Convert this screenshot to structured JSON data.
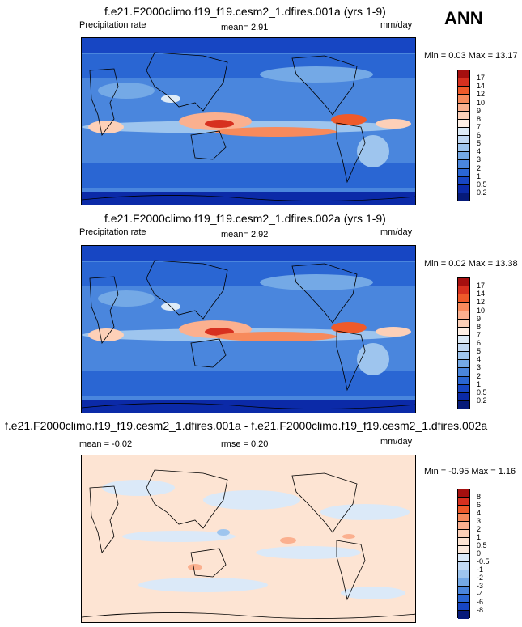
{
  "season": "ANN",
  "panels": [
    {
      "title": "f.e21.F2000climo.f19_f19.cesm2_1.dfires.001a (yrs 1-9)",
      "variable": "Precipitation rate",
      "stat_text": "mean=   2.91",
      "units": "mm/day",
      "minmax": "Min =   0.03 Max =  13.17",
      "kind": "precip",
      "legend_labels": [
        "17",
        "14",
        "12",
        "10",
        "9",
        "8",
        "7",
        "6",
        "5",
        "4",
        "3",
        "2",
        "1",
        "0.5",
        "0.2"
      ],
      "legend_colors": [
        "#a50f0f",
        "#d7301f",
        "#ef5a2a",
        "#f78a5c",
        "#fbb08f",
        "#fdd0b8",
        "#fff0e6",
        "#deebf7",
        "#c2d9f3",
        "#9ec5ee",
        "#74a9e6",
        "#4a86dd",
        "#2a66d3",
        "#1746c3",
        "#0b2aa8",
        "#061a7a"
      ]
    },
    {
      "title": "f.e21.F2000climo.f19_f19.cesm2_1.dfires.002a (yrs 1-9)",
      "variable": "Precipitation rate",
      "stat_text": "mean=   2.92",
      "units": "mm/day",
      "minmax": "Min =   0.02 Max =  13.38",
      "kind": "precip",
      "legend_labels": [
        "17",
        "14",
        "12",
        "10",
        "9",
        "8",
        "7",
        "6",
        "5",
        "4",
        "3",
        "2",
        "1",
        "0.5",
        "0.2"
      ],
      "legend_colors": [
        "#a50f0f",
        "#d7301f",
        "#ef5a2a",
        "#f78a5c",
        "#fbb08f",
        "#fdd0b8",
        "#fff0e6",
        "#deebf7",
        "#c2d9f3",
        "#9ec5ee",
        "#74a9e6",
        "#4a86dd",
        "#2a66d3",
        "#1746c3",
        "#0b2aa8",
        "#061a7a"
      ]
    },
    {
      "title": "f.e21.F2000climo.f19_f19.cesm2_1.dfires.001a - f.e21.F2000climo.f19_f19.cesm2_1.dfires.002a",
      "variable": "mean =  -0.02",
      "stat_text": "rmse =   0.20",
      "units": "mm/day",
      "minmax": "Min =  -0.95 Max =   1.16",
      "kind": "diff",
      "legend_labels": [
        "8",
        "6",
        "4",
        "3",
        "2",
        "1",
        "0.5",
        "0",
        "-0.5",
        "-1",
        "-2",
        "-3",
        "-4",
        "-6",
        "-8"
      ],
      "legend_colors": [
        "#a50f0f",
        "#d7301f",
        "#ef5a2a",
        "#f78a5c",
        "#fbb08f",
        "#fdd0b8",
        "#fde4d3",
        "#fbe9dc",
        "#dbe9f8",
        "#c2d9f3",
        "#9ec5ee",
        "#74a9e6",
        "#4a86dd",
        "#2a66d3",
        "#1746c3",
        "#061a7a"
      ]
    }
  ]
}
